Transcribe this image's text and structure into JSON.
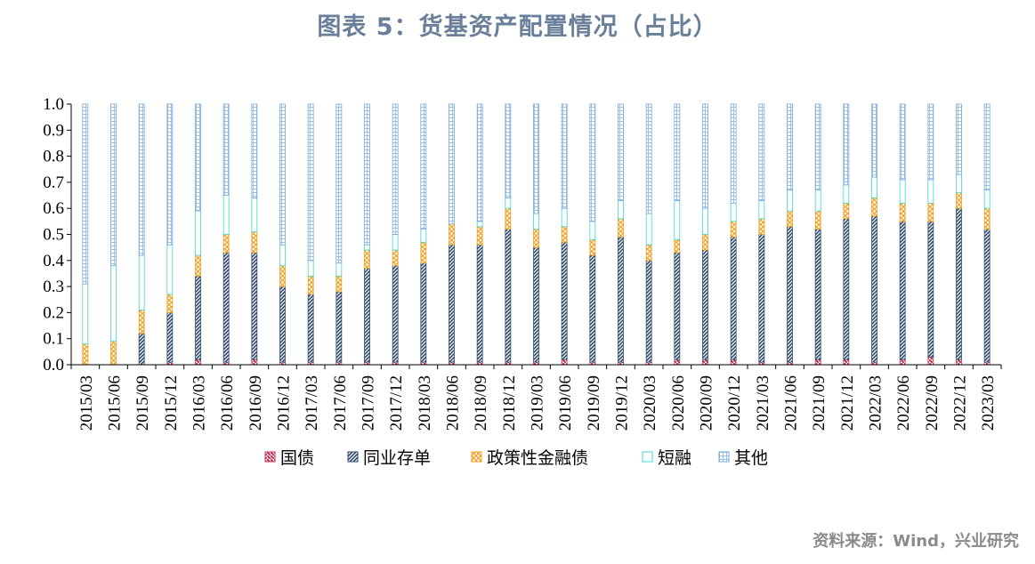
{
  "title": "图表 5：货基资产配置情况（占比）",
  "source": "资料来源：Wind，兴业研究",
  "chart_data": {
    "type": "bar",
    "stacked": true,
    "ylim": [
      0,
      1.0
    ],
    "yticks": [
      "0.0",
      "0.1",
      "0.2",
      "0.3",
      "0.4",
      "0.5",
      "0.6",
      "0.7",
      "0.8",
      "0.9",
      "1.0"
    ],
    "categories": [
      "2015/03",
      "2015/06",
      "2015/09",
      "2015/12",
      "2016/03",
      "2016/06",
      "2016/09",
      "2016/12",
      "2017/03",
      "2017/06",
      "2017/09",
      "2017/12",
      "2018/03",
      "2018/06",
      "2018/09",
      "2018/12",
      "2019/03",
      "2019/06",
      "2019/09",
      "2019/12",
      "2020/03",
      "2020/06",
      "2020/09",
      "2020/12",
      "2021/03",
      "2021/06",
      "2021/09",
      "2021/12",
      "2022/03",
      "2022/06",
      "2022/09",
      "2022/12",
      "2023/03"
    ],
    "series": [
      {
        "name": "国债",
        "color": "#c8385a",
        "pattern": "pat-guozhai",
        "values": [
          0,
          0,
          0,
          0.01,
          0.02,
          0.01,
          0.02,
          0.01,
          0.01,
          0.01,
          0.01,
          0.01,
          0.01,
          0.01,
          0.01,
          0.01,
          0.01,
          0.02,
          0.01,
          0.01,
          0.01,
          0.02,
          0.02,
          0.02,
          0.01,
          0.01,
          0.02,
          0.02,
          0.01,
          0.02,
          0.03,
          0.02,
          0.01
        ]
      },
      {
        "name": "同业存单",
        "color": "#2e4a72",
        "pattern": "pat-tongye",
        "values": [
          0,
          0,
          0.12,
          0.19,
          0.32,
          0.42,
          0.41,
          0.29,
          0.26,
          0.27,
          0.36,
          0.37,
          0.38,
          0.45,
          0.45,
          0.51,
          0.44,
          0.45,
          0.41,
          0.48,
          0.39,
          0.41,
          0.42,
          0.47,
          0.49,
          0.52,
          0.5,
          0.54,
          0.56,
          0.53,
          0.52,
          0.58,
          0.51
        ]
      },
      {
        "name": "政策性金融债",
        "color": "#f0a020",
        "pattern": "pat-zhengce",
        "values": [
          0.08,
          0.09,
          0.09,
          0.07,
          0.08,
          0.07,
          0.08,
          0.08,
          0.07,
          0.06,
          0.07,
          0.06,
          0.08,
          0.08,
          0.07,
          0.08,
          0.07,
          0.06,
          0.06,
          0.07,
          0.06,
          0.05,
          0.06,
          0.06,
          0.06,
          0.06,
          0.07,
          0.06,
          0.07,
          0.07,
          0.07,
          0.06,
          0.08
        ]
      },
      {
        "name": "短融",
        "color": "#40d8d0",
        "pattern": "pat-duanrong",
        "values": [
          0.23,
          0.29,
          0.21,
          0.19,
          0.17,
          0.15,
          0.13,
          0.08,
          0.06,
          0.05,
          0.02,
          0.06,
          0.05,
          0,
          0.02,
          0.04,
          0.06,
          0.07,
          0.07,
          0.07,
          0.12,
          0.15,
          0.1,
          0.07,
          0.07,
          0.08,
          0.08,
          0.07,
          0.08,
          0.09,
          0.09,
          0.07,
          0.07
        ]
      },
      {
        "name": "其他",
        "color": "#7aa8d8",
        "pattern": "pat-qita",
        "values": [
          0.69,
          0.62,
          0.58,
          0.54,
          0.41,
          0.35,
          0.36,
          0.54,
          0.6,
          0.61,
          0.54,
          0.5,
          0.48,
          0.46,
          0.45,
          0.36,
          0.42,
          0.4,
          0.45,
          0.37,
          0.42,
          0.37,
          0.4,
          0.38,
          0.37,
          0.33,
          0.33,
          0.31,
          0.28,
          0.29,
          0.29,
          0.27,
          0.33
        ]
      }
    ],
    "legend_position": "bottom",
    "grid": false
  }
}
